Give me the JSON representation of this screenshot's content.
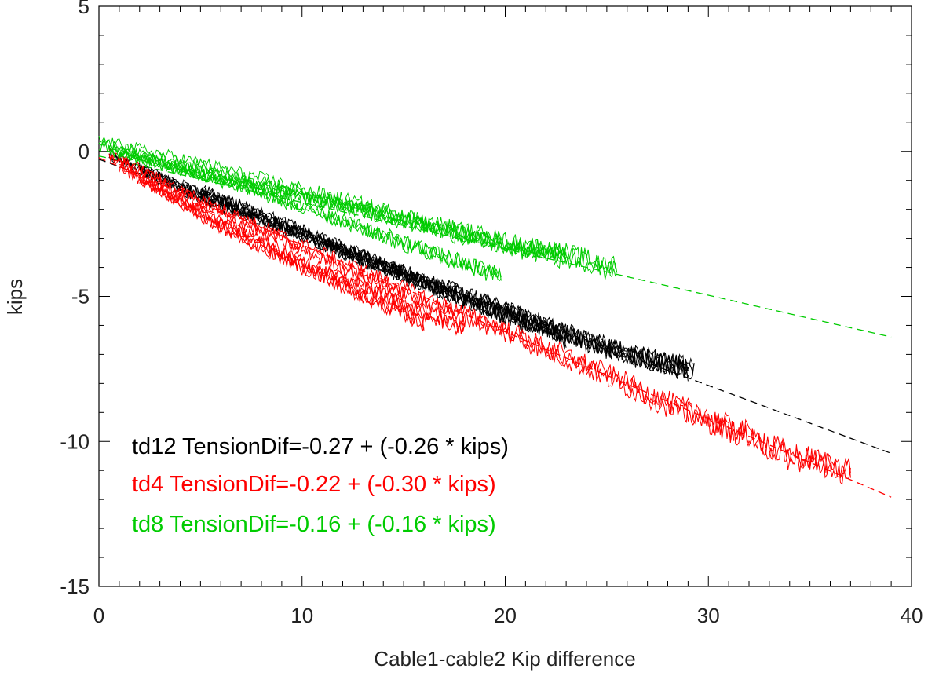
{
  "chart_data": {
    "type": "line",
    "title": "",
    "xlabel": "Cable1-cable2 Kip difference",
    "ylabel": "kips",
    "xlim": [
      0,
      40
    ],
    "ylim": [
      -15,
      5
    ],
    "x_ticks": [
      "0",
      "10",
      "20",
      "30",
      "40"
    ],
    "y_ticks": [
      "5",
      "0",
      "-5",
      "-10",
      "-15"
    ],
    "grid": false,
    "legend_position": "bottom-left",
    "series": [
      {
        "name": "td12",
        "color": "#000000",
        "equation": "td12 TensionDif=-0.27 + (-0.26 * kips)",
        "intercept": -0.27,
        "slope": -0.26,
        "fit_x": [
          0,
          39
        ],
        "data_x_range": [
          0.5,
          29.3
        ],
        "measured_bands": [
          {
            "x": [
              0.5,
              5,
              10,
              15,
              20,
              25,
              29.3
            ],
            "y": [
              -0.1,
              -1.6,
              -2.9,
              -4.2,
              -5.5,
              -6.8,
              -7.6
            ]
          },
          {
            "x": [
              2,
              8,
              14,
              20,
              26,
              29
            ],
            "y": [
              -0.6,
              -2.3,
              -4.0,
              -5.6,
              -7.0,
              -7.5
            ]
          },
          {
            "x": [
              5,
              10,
              16,
              23
            ],
            "y": [
              -1.4,
              -2.8,
              -4.6,
              -6.5
            ]
          }
        ]
      },
      {
        "name": "td4",
        "color": "#ff0000",
        "equation": "td4 TensionDif=-0.22 + (-0.30 * kips)",
        "intercept": -0.22,
        "slope": -0.3,
        "fit_x": [
          0,
          39
        ],
        "data_x_range": [
          0.5,
          37
        ],
        "measured_bands": [
          {
            "x": [
              0.5,
              4,
              8,
              12,
              16,
              20,
              24,
              28,
              32,
              34,
              37
            ],
            "y": [
              -0.1,
              -1.4,
              -2.7,
              -3.9,
              -5.1,
              -6.2,
              -7.4,
              -8.7,
              -9.8,
              -10.5,
              -11.0
            ]
          },
          {
            "x": [
              1,
              5,
              10,
              15,
              18
            ],
            "y": [
              -0.5,
              -2.0,
              -3.8,
              -5.2,
              -6.1
            ]
          },
          {
            "x": [
              2,
              6,
              11,
              16
            ],
            "y": [
              -0.9,
              -2.6,
              -4.3,
              -5.9
            ]
          }
        ]
      },
      {
        "name": "td8",
        "color": "#00cc00",
        "equation": "td8 TensionDif=-0.16 + (-0.16 * kips)",
        "intercept": -0.16,
        "slope": -0.16,
        "fit_x": [
          0,
          39
        ],
        "data_x_range": [
          0,
          25.5
        ],
        "measured_bands": [
          {
            "x": [
              0,
              5,
              10,
              15,
              20,
              23,
              25.5
            ],
            "y": [
              0.3,
              -0.5,
              -1.4,
              -2.3,
              -3.2,
              -3.6,
              -4.1
            ]
          },
          {
            "x": [
              0.5,
              6,
              12,
              18,
              23
            ],
            "y": [
              0.1,
              -0.9,
              -1.8,
              -2.8,
              -3.5
            ]
          },
          {
            "x": [
              1,
              7,
              12,
              16,
              19.8
            ],
            "y": [
              0.0,
              -1.2,
              -2.4,
              -3.4,
              -4.3
            ]
          }
        ]
      }
    ]
  }
}
